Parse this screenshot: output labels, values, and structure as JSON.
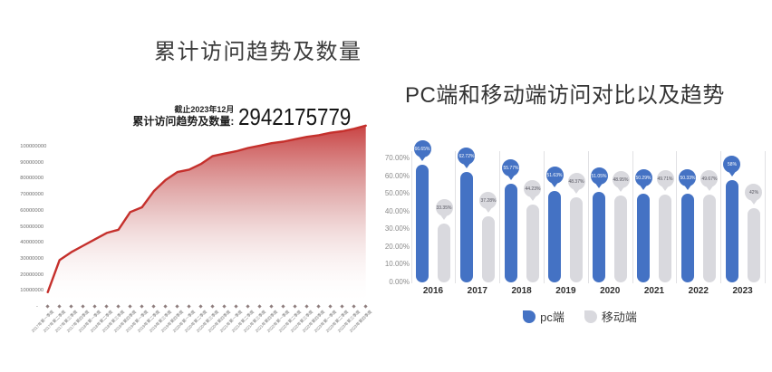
{
  "page": {
    "background": "#ffffff"
  },
  "chart_data": [
    {
      "type": "area",
      "title": "累计访问趋势及数量",
      "stat": {
        "note": "截止2023年12月",
        "label": "累计访问趋势及数量:",
        "value": "2942175779"
      },
      "x": [
        "2017年第一季度",
        "2017年第二季度",
        "2017年第三季度",
        "2017年第四季度",
        "2018年第一季度",
        "2018年第二季度",
        "2018年第三季度",
        "2018年第四季度",
        "2019年第一季度",
        "2019年第二季度",
        "2019年第三季度",
        "2019年第四季度",
        "2020年第一季度",
        "2020年第二季度",
        "2020年第三季度",
        "2020年第四季度",
        "2021年第一季度",
        "2021年第二季度",
        "2021年第三季度",
        "2021年第四季度",
        "2022年第一季度",
        "2022年第二季度",
        "2022年第三季度",
        "2022年第四季度",
        "2023年第一季度",
        "2023年第二季度",
        "2023年第三季度",
        "2023年第四季度"
      ],
      "values": [
        8000000,
        28000000,
        33000000,
        37000000,
        41000000,
        45000000,
        47000000,
        58000000,
        61000000,
        71000000,
        78000000,
        83000000,
        84500000,
        88000000,
        93000000,
        94500000,
        96000000,
        98000000,
        99500000,
        101000000,
        102000000,
        103500000,
        105000000,
        106000000,
        107500000,
        108500000,
        110000000,
        112000000
      ],
      "y_ticks": [
        "100000000",
        "90000000",
        "80000000",
        "70000000",
        "60000000",
        "50000000",
        "40000000",
        "30000000",
        "20000000",
        "10000000",
        "-"
      ],
      "ylim": [
        0,
        115000000
      ],
      "line_color": "#c5302c",
      "grid": false
    },
    {
      "type": "bar",
      "title": "PC端和移动端访问对比以及趋势",
      "categories": [
        "2016",
        "2017",
        "2018",
        "2019",
        "2020",
        "2021",
        "2022",
        "2023"
      ],
      "series": [
        {
          "name": "pc端",
          "color": "#4472c4",
          "values": [
            66.65,
            62.72,
            55.77,
            51.63,
            51.05,
            50.29,
            50.33,
            58
          ],
          "labels": [
            "66.65%",
            "62.72%",
            "55.77%",
            "51.63%",
            "51.05%",
            "50.29%",
            "50.33%",
            "58%"
          ]
        },
        {
          "name": "移动端",
          "color": "#d9d9de",
          "values": [
            33.35,
            37.28,
            44.23,
            48.37,
            48.95,
            49.71,
            49.67,
            42
          ],
          "labels": [
            "33.35%",
            "37.28%",
            "44.23%",
            "48.37%",
            "48.95%",
            "49.71%",
            "49.67%",
            "42%"
          ]
        }
      ],
      "y_ticks": [
        "70.00%",
        "60.00%",
        "50.00%",
        "40.00%",
        "30.00%",
        "20.00%",
        "10.00%",
        "0.00%"
      ],
      "ylim": [
        0,
        70
      ],
      "legend_position": "bottom",
      "grid": false
    }
  ]
}
